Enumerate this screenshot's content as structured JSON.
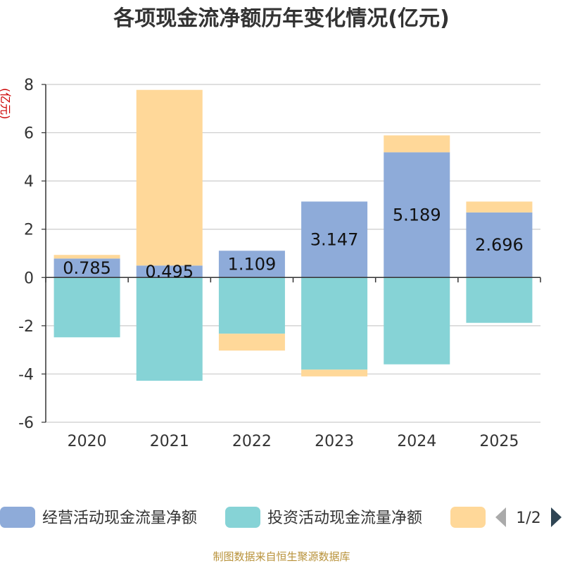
{
  "chart_data": {
    "type": "bar",
    "stacked": true,
    "title": "各项现金流净额历年变化情况(亿元)",
    "ylabel": "(亿元)",
    "xlabel": "",
    "ylim": [
      -6,
      8
    ],
    "yticks": [
      8,
      6,
      4,
      2,
      0,
      -2,
      -4,
      -6
    ],
    "categories": [
      "2020",
      "2021",
      "2022",
      "2023",
      "2024",
      "2025"
    ],
    "series": [
      {
        "name": "经营活动现金流量净额",
        "color": "#8eabd9",
        "values": [
          0.785,
          0.495,
          1.109,
          3.147,
          5.189,
          2.696
        ],
        "labels": [
          "0.785",
          "0.495",
          "1.109",
          "3.147",
          "5.189",
          "2.696"
        ]
      },
      {
        "name": "投资活动现金流量净额",
        "color": "#86d3d6",
        "values": [
          -2.48,
          -4.28,
          -2.33,
          -3.82,
          -3.6,
          -1.88
        ]
      },
      {
        "name": "",
        "color": "#ffd899",
        "values": [
          0.15,
          7.28,
          -0.7,
          -0.28,
          0.7,
          0.45
        ]
      }
    ],
    "legend": {
      "position": "bottom",
      "page": "1/2"
    },
    "grid": true
  },
  "footer": "制图数据来自恒生聚源数据库"
}
